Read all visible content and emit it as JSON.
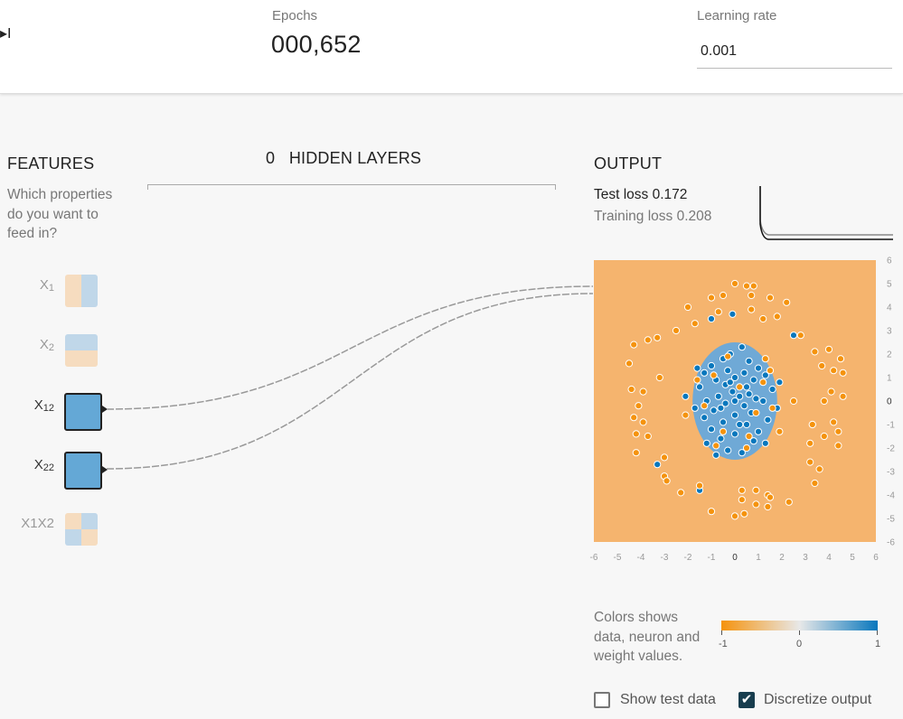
{
  "toolbar": {
    "step_glyph": "▸I",
    "epochs_label": "Epochs",
    "epochs_value": "000,652",
    "learning_rate_label": "Learning rate",
    "learning_rate_value": "0.001"
  },
  "features": {
    "title": "FEATURES",
    "question": "Which properties do you want to feed in?",
    "items": [
      {
        "name": "x1",
        "base": "X",
        "sub": "1",
        "active": false
      },
      {
        "name": "x2",
        "base": "X",
        "sub": "2",
        "active": false
      },
      {
        "name": "x1-squared",
        "base": "X",
        "sub": "12",
        "active": true
      },
      {
        "name": "x2-squared",
        "base": "X",
        "sub": "22",
        "active": true
      },
      {
        "name": "x1x2",
        "label": "X1X2",
        "active": false
      }
    ]
  },
  "hidden_layers": {
    "count": "0",
    "label": "HIDDEN LAYERS"
  },
  "output": {
    "title": "OUTPUT",
    "test_loss_label": "Test loss",
    "test_loss_value": "0.172",
    "training_loss_label": "Training loss",
    "training_loss_value": "0.208",
    "x_ticks": [
      "-6",
      "-5",
      "-4",
      "-3",
      "-2",
      "-1",
      "0",
      "1",
      "2",
      "3",
      "4",
      "5",
      "6"
    ],
    "y_ticks": [
      "6",
      "5",
      "4",
      "3",
      "2",
      "1",
      "0",
      "-1",
      "-2",
      "-3",
      "-4",
      "-5",
      "-6"
    ]
  },
  "legend": {
    "text": "Colors shows data, neuron and weight values.",
    "min_label": "-1",
    "mid_label": "0",
    "max_label": "1"
  },
  "options": {
    "show_test_data_label": "Show test data",
    "show_test_data_checked": false,
    "discretize_output_label": "Discretize output",
    "discretize_output_checked": true,
    "check_glyph": "✔"
  },
  "colors": {
    "positive": "#0877bd",
    "negative": "#f5930d",
    "region_positive": "#6fa9d6",
    "region_negative": "#f5b46e",
    "active_node": "#64a8d6"
  },
  "chart_data": {
    "type": "scatter",
    "xlim": [
      -6,
      6
    ],
    "ylim": [
      -6,
      6
    ],
    "decision_region": {
      "shape": "ellipse",
      "center": [
        0,
        0
      ],
      "radii": [
        1.8,
        2.5
      ]
    },
    "series": [
      {
        "class": "positive",
        "points": [
          [
            0.3,
            2.3
          ],
          [
            -0.2,
            2.0
          ],
          [
            -0.5,
            1.8
          ],
          [
            0.6,
            1.7
          ],
          [
            -1.0,
            1.5
          ],
          [
            1.0,
            1.4
          ],
          [
            -0.3,
            1.3
          ],
          [
            0.4,
            1.2
          ],
          [
            -1.3,
            1.2
          ],
          [
            1.3,
            1.1
          ],
          [
            0,
            1.0
          ],
          [
            -0.8,
            0.9
          ],
          [
            0.8,
            0.9
          ],
          [
            -0.4,
            0.7
          ],
          [
            0.5,
            0.6
          ],
          [
            -1.5,
            0.6
          ],
          [
            1.6,
            0.5
          ],
          [
            -0.1,
            0.4
          ],
          [
            0.2,
            0.2
          ],
          [
            -0.7,
            0.2
          ],
          [
            0.9,
            0.1
          ],
          [
            -1.2,
            0.0
          ],
          [
            1.2,
            0.0
          ],
          [
            0,
            0
          ],
          [
            -0.4,
            -0.1
          ],
          [
            0.4,
            -0.2
          ],
          [
            -1.7,
            -0.3
          ],
          [
            1.8,
            -0.3
          ],
          [
            -0.9,
            -0.4
          ],
          [
            0.7,
            -0.5
          ],
          [
            0,
            -0.6
          ],
          [
            -1.3,
            -0.7
          ],
          [
            1.4,
            -0.8
          ],
          [
            -0.5,
            -0.9
          ],
          [
            0.5,
            -1.0
          ],
          [
            -1.0,
            -1.2
          ],
          [
            1.0,
            -1.3
          ],
          [
            0,
            -1.4
          ],
          [
            -0.6,
            -1.6
          ],
          [
            0.8,
            -1.7
          ],
          [
            -1.2,
            -1.8
          ],
          [
            1.3,
            -1.8
          ],
          [
            -0.3,
            -2.1
          ],
          [
            0.3,
            -2.2
          ],
          [
            -0.8,
            -2.3
          ],
          [
            -2.1,
            0.2
          ],
          [
            1.9,
            0.8
          ],
          [
            -1.6,
            1.4
          ],
          [
            -1.0,
            3.5
          ],
          [
            3.3,
            -1.0
          ],
          [
            -3.3,
            -2.7
          ],
          [
            -1.5,
            -3.8
          ],
          [
            0.2,
            -1.0
          ],
          [
            -0.2,
            0.8
          ],
          [
            0.6,
            0.3
          ],
          [
            -0.6,
            -0.3
          ],
          [
            2.5,
            2.8
          ],
          [
            -0.1,
            3.7
          ]
        ]
      },
      {
        "class": "negative",
        "points": [
          [
            0,
            5.0
          ],
          [
            0.5,
            4.9
          ],
          [
            0.8,
            4.9
          ],
          [
            -1.0,
            4.4
          ],
          [
            -0.5,
            4.5
          ],
          [
            1.5,
            4.4
          ],
          [
            2.2,
            4.2
          ],
          [
            -2.0,
            4.0
          ],
          [
            0.7,
            3.9
          ],
          [
            1.2,
            3.5
          ],
          [
            1.8,
            3.6
          ],
          [
            -1.7,
            3.3
          ],
          [
            -2.5,
            3.0
          ],
          [
            2.8,
            2.8
          ],
          [
            -3.3,
            2.7
          ],
          [
            -4.3,
            2.4
          ],
          [
            -3.7,
            2.6
          ],
          [
            3.4,
            2.1
          ],
          [
            4.0,
            2.2
          ],
          [
            -4.5,
            1.6
          ],
          [
            4.5,
            1.8
          ],
          [
            3.7,
            1.5
          ],
          [
            4.2,
            1.3
          ],
          [
            -3.2,
            1.0
          ],
          [
            4.6,
            1.2
          ],
          [
            -4.4,
            0.5
          ],
          [
            -3.9,
            0.4
          ],
          [
            4.1,
            0.4
          ],
          [
            4.6,
            0.2
          ],
          [
            -4.1,
            -0.2
          ],
          [
            3.8,
            0.0
          ],
          [
            2.5,
            0.0
          ],
          [
            -4.3,
            -0.7
          ],
          [
            -3.9,
            -0.9
          ],
          [
            3.3,
            -1.0
          ],
          [
            4.2,
            -0.9
          ],
          [
            -4.2,
            -1.4
          ],
          [
            4.4,
            -1.3
          ],
          [
            -3.7,
            -1.5
          ],
          [
            3.8,
            -1.5
          ],
          [
            -4.2,
            -2.2
          ],
          [
            3.2,
            -1.8
          ],
          [
            4.4,
            -1.9
          ],
          [
            -3.0,
            -2.4
          ],
          [
            3.2,
            -2.6
          ],
          [
            3.6,
            -2.9
          ],
          [
            -3.0,
            -3.2
          ],
          [
            3.4,
            -3.5
          ],
          [
            -2.9,
            -3.4
          ],
          [
            -2.3,
            -3.9
          ],
          [
            -1.0,
            -4.7
          ],
          [
            0.3,
            -3.8
          ],
          [
            0.9,
            -3.8
          ],
          [
            1.4,
            -4.0
          ],
          [
            0.3,
            -4.2
          ],
          [
            0.9,
            -4.4
          ],
          [
            -1.5,
            -3.6
          ],
          [
            1.4,
            -4.5
          ],
          [
            0,
            -4.9
          ],
          [
            0.4,
            -4.8
          ],
          [
            2.3,
            -4.3
          ],
          [
            1.5,
            -4.1
          ],
          [
            -0.7,
            3.8
          ],
          [
            0.7,
            4.5
          ],
          [
            1.5,
            1.3
          ],
          [
            -0.9,
            1.1
          ],
          [
            0.9,
            -0.5
          ],
          [
            -0.5,
            -1.3
          ],
          [
            0.2,
            0.6
          ],
          [
            -0.8,
            -1.9
          ],
          [
            0.6,
            -1.5
          ],
          [
            1.2,
            0.8
          ],
          [
            -1.3,
            -0.2
          ],
          [
            -2.1,
            -0.6
          ],
          [
            1.3,
            1.8
          ],
          [
            0.5,
            -2.0
          ],
          [
            1.6,
            -0.3
          ],
          [
            -0.3,
            1.9
          ],
          [
            -1.6,
            0.9
          ],
          [
            1.9,
            -1.3
          ]
        ]
      }
    ]
  }
}
